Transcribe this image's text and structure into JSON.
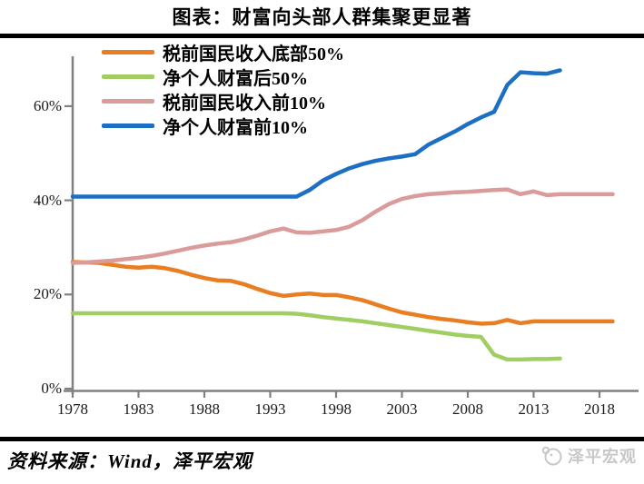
{
  "page": {
    "source_note": "资料来源：Wind，泽平宏观",
    "watermark_text": "泽平宏观"
  },
  "chart_data": {
    "type": "line",
    "title": "图表：财富向头部人群集聚更显著",
    "xlabel": "",
    "ylabel": "",
    "x_tick_labels": [
      "1978",
      "1983",
      "1988",
      "1993",
      "1998",
      "2003",
      "2008",
      "2013",
      "2018"
    ],
    "x_tick_years": [
      1978,
      1983,
      1988,
      1993,
      1998,
      2003,
      2008,
      2013,
      2018
    ],
    "y_tick_labels": [
      "0%",
      "20%",
      "40%",
      "60%"
    ],
    "y_tick_values": [
      0,
      20,
      40,
      60
    ],
    "xlim": [
      1978,
      2020
    ],
    "ylim": [
      0,
      70
    ],
    "grid": false,
    "legend_position": "top-left",
    "axis_color": "#808080",
    "series": [
      {
        "key": "pretax-income-bottom-50",
        "name": "税前国民收入底部50%",
        "color": "#E87D22",
        "start_year": 1978,
        "values": [
          26.9,
          26.8,
          26.7,
          26.3,
          25.9,
          25.7,
          25.9,
          25.6,
          25.0,
          24.2,
          23.5,
          23.0,
          22.9,
          22.2,
          21.2,
          20.3,
          19.7,
          20.0,
          20.2,
          19.9,
          19.9,
          19.4,
          18.8,
          17.9,
          17.0,
          16.2,
          15.7,
          15.2,
          14.8,
          14.5,
          14.1,
          13.8,
          13.9,
          14.6,
          13.9,
          14.3,
          14.3,
          14.3,
          14.3,
          14.3,
          14.3,
          14.3
        ]
      },
      {
        "key": "net-wealth-bottom-50",
        "name": "净个人财富后50%",
        "color": "#A0CE62",
        "start_year": 1978,
        "values": [
          16.0,
          16.0,
          16.0,
          16.0,
          16.0,
          16.0,
          16.0,
          16.0,
          16.0,
          16.0,
          16.0,
          16.0,
          16.0,
          16.0,
          16.0,
          16.0,
          16.0,
          15.9,
          15.6,
          15.2,
          14.9,
          14.6,
          14.3,
          13.9,
          13.5,
          13.1,
          12.7,
          12.3,
          11.9,
          11.5,
          11.2,
          11.0,
          7.2,
          6.2,
          6.2,
          6.3,
          6.3,
          6.4
        ]
      },
      {
        "key": "pretax-income-top-10",
        "name": "税前国民收入前10%",
        "color": "#D99C9B",
        "start_year": 1978,
        "values": [
          26.7,
          26.8,
          27.0,
          27.2,
          27.5,
          27.8,
          28.2,
          28.7,
          29.3,
          29.9,
          30.4,
          30.8,
          31.1,
          31.7,
          32.5,
          33.4,
          34.0,
          33.2,
          33.1,
          33.4,
          33.7,
          34.4,
          35.8,
          37.6,
          39.2,
          40.3,
          40.9,
          41.3,
          41.5,
          41.7,
          41.8,
          42.0,
          42.2,
          42.3,
          41.3,
          41.9,
          41.1,
          41.3,
          41.3,
          41.3,
          41.3,
          41.3
        ]
      },
      {
        "key": "net-wealth-top-10",
        "name": "净个人财富前10%",
        "color": "#1C6FC3",
        "start_year": 1978,
        "values": [
          40.8,
          40.8,
          40.8,
          40.8,
          40.8,
          40.8,
          40.8,
          40.8,
          40.8,
          40.8,
          40.8,
          40.8,
          40.8,
          40.8,
          40.8,
          40.8,
          40.8,
          40.8,
          42.2,
          44.2,
          45.6,
          46.8,
          47.7,
          48.4,
          48.9,
          49.3,
          49.8,
          51.8,
          53.2,
          54.6,
          56.2,
          57.6,
          58.8,
          64.5,
          67.2,
          67.0,
          66.9,
          67.6
        ]
      }
    ]
  }
}
